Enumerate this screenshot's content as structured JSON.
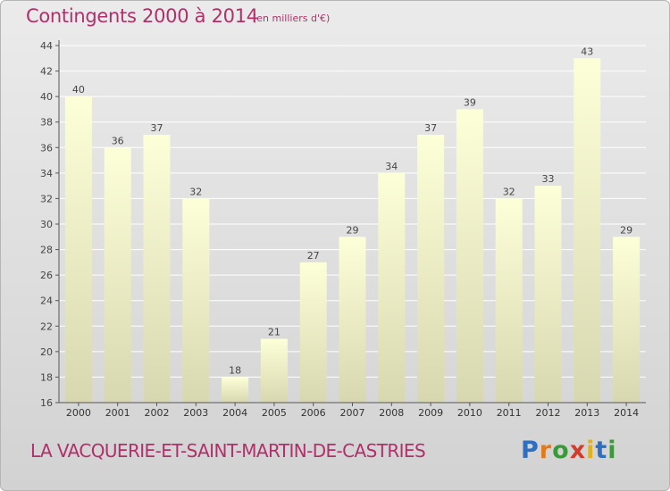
{
  "header": {
    "title": "Contingents 2000 à 2014",
    "unit": "(en milliers d'€)"
  },
  "footer": {
    "commune": "LA VACQUERIE-ET-SAINT-MARTIN-DE-CASTRIES",
    "logo_letters": [
      "P",
      "r",
      "o",
      "x",
      "i",
      "t",
      "i"
    ]
  },
  "colors": {
    "title": "#b0306b",
    "bar_top": "#fdffd8",
    "bar_bottom": "#d8d8b0",
    "axis": "#555555",
    "grid": "#ffffff",
    "logo": [
      "#2f6fbf",
      "#e07a1f",
      "#3a9a3a",
      "#d23c2c",
      "#e0b21f",
      "#2f6fbf",
      "#3a9a3a"
    ]
  },
  "chart_data": {
    "type": "bar",
    "categories": [
      "2000",
      "2001",
      "2002",
      "2003",
      "2004",
      "2005",
      "2006",
      "2007",
      "2008",
      "2009",
      "2010",
      "2011",
      "2012",
      "2013",
      "2014"
    ],
    "values": [
      40,
      36,
      37,
      32,
      18,
      21,
      27,
      29,
      34,
      37,
      39,
      32,
      33,
      43,
      29
    ],
    "data_labels": [
      "40",
      "36",
      "37",
      "32",
      "18",
      "21",
      "27",
      "29",
      "34",
      "37",
      "39",
      "32",
      "33",
      "43",
      "29"
    ],
    "yticks": [
      "16",
      "18",
      "20",
      "22",
      "24",
      "26",
      "28",
      "30",
      "32",
      "34",
      "36",
      "38",
      "40",
      "42",
      "44"
    ],
    "ylim": [
      16,
      44
    ],
    "grid": "horizontal",
    "title": "Contingents 2000 à 2014",
    "xlabel": "",
    "ylabel": ""
  }
}
